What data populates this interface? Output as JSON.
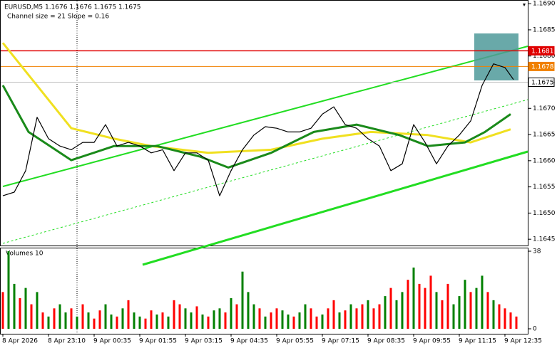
{
  "chart_data": {
    "type": "line",
    "title": "EURUSD,M5  1.1676 1.1676 1.1675 1.1675",
    "subtitle": "Channel size = 21 Slope = 0.16",
    "xlim": [
      0,
      184
    ],
    "xticks": [
      {
        "value": 0,
        "label": "8 Apr 2026"
      },
      {
        "value": 16,
        "label": "8 Apr 23:10"
      },
      {
        "value": 32,
        "label": "9 Apr 00:35"
      },
      {
        "value": 48,
        "label": "9 Apr 01:55"
      },
      {
        "value": 64,
        "label": "9 Apr 03:15"
      },
      {
        "value": 80,
        "label": "9 Apr 04:35"
      },
      {
        "value": 96,
        "label": "9 Apr 05:55"
      },
      {
        "value": 112,
        "label": "9 Apr 07:15"
      },
      {
        "value": 128,
        "label": "9 Apr 08:35"
      },
      {
        "value": 144,
        "label": "9 Apr 09:55"
      },
      {
        "value": 160,
        "label": "9 Apr 11:15"
      },
      {
        "value": 176,
        "label": "9 Apr 12:35"
      }
    ],
    "ylim": [
      1.16438,
      1.16907
    ],
    "yticks": [
      {
        "value": 1.169,
        "label": "1.1690"
      },
      1.1685,
      {
        "value": 1.168,
        "label": "1.1680"
      },
      1.1675,
      {
        "value": 1.167,
        "label": "1.1670"
      },
      1.1665,
      {
        "value": 1.166,
        "label": "1.1660"
      },
      1.1655,
      {
        "value": 1.165,
        "label": "1.1650"
      },
      1.1645
    ],
    "series": [
      {
        "name": "Price",
        "color": "#000000",
        "x": [
          0,
          4,
          8,
          12,
          16,
          20,
          24,
          28,
          32,
          36,
          40,
          44,
          48,
          52,
          56,
          60,
          64,
          68,
          72,
          76,
          80,
          84,
          88,
          92,
          96,
          100,
          104,
          108,
          112,
          116,
          120,
          124,
          128,
          132,
          136,
          140,
          144,
          148,
          152,
          156,
          160,
          164,
          168,
          172,
          176,
          179
        ],
        "values": [
          1.16533,
          1.1654,
          1.16581,
          1.16683,
          1.16642,
          1.16628,
          1.16621,
          1.16635,
          1.16635,
          1.16669,
          1.16628,
          1.16635,
          1.16628,
          1.16615,
          1.16621,
          1.16581,
          1.16615,
          1.16615,
          1.16601,
          1.16533,
          1.16581,
          1.16621,
          1.16649,
          1.16665,
          1.16662,
          1.16655,
          1.16655,
          1.16662,
          1.16689,
          1.16703,
          1.16669,
          1.16662,
          1.16642,
          1.16628,
          1.16581,
          1.16594,
          1.16669,
          1.16635,
          1.16594,
          1.16628,
          1.16649,
          1.16676,
          1.16744,
          1.16785,
          1.16778,
          1.16755
        ]
      },
      {
        "name": "MA fast",
        "color": "#1a8a1a",
        "x": [
          0,
          9,
          24,
          39,
          54,
          69,
          79,
          94,
          109,
          124,
          139,
          149,
          162,
          169,
          178
        ],
        "values": [
          1.16744,
          1.16655,
          1.16601,
          1.16628,
          1.16628,
          1.16608,
          1.16587,
          1.16615,
          1.16655,
          1.16669,
          1.16649,
          1.16628,
          1.16635,
          1.16655,
          1.16689
        ]
      },
      {
        "name": "MA slow",
        "color": "#f0e020",
        "x": [
          0,
          24,
          39,
          52,
          72,
          94,
          112,
          129,
          149,
          164,
          178
        ],
        "values": [
          1.16825,
          1.16662,
          1.16642,
          1.16628,
          1.16615,
          1.16621,
          1.16642,
          1.16655,
          1.16649,
          1.16635,
          1.1666
        ]
      }
    ],
    "levels": [
      {
        "value": 1.1681,
        "color": "#e00000"
      },
      {
        "value": 1.1678,
        "color": "#f08000"
      },
      {
        "value": 1.1675,
        "color": "#c0c0c0"
      }
    ],
    "volumes": {
      "label": "Volumes 10",
      "ylim": [
        0,
        38
      ],
      "yticks": [
        0,
        38
      ],
      "colors": {
        "up": "#008000",
        "down": "#ff0000"
      },
      "x": [
        0,
        2,
        4,
        6,
        8,
        10,
        12,
        14,
        16,
        18,
        20,
        22,
        24,
        26,
        28,
        30,
        32,
        34,
        36,
        38,
        40,
        42,
        44,
        46,
        48,
        50,
        52,
        54,
        56,
        58,
        60,
        62,
        64,
        66,
        68,
        70,
        72,
        74,
        76,
        78,
        80,
        82,
        84,
        86,
        88,
        90,
        92,
        94,
        96,
        98,
        100,
        102,
        104,
        106,
        108,
        110,
        112,
        114,
        116,
        118,
        120,
        122,
        124,
        126,
        128,
        130,
        132,
        134,
        136,
        138,
        140,
        142,
        144,
        146,
        148,
        150,
        152,
        154,
        156,
        158,
        160,
        162,
        164,
        166,
        168,
        170,
        172,
        174,
        176,
        178,
        180
      ],
      "values": [
        18,
        38,
        22,
        15,
        20,
        12,
        18,
        8,
        6,
        10,
        12,
        8,
        10,
        6,
        12,
        8,
        5,
        9,
        12,
        7,
        6,
        10,
        14,
        8,
        6,
        5,
        9,
        7,
        8,
        6,
        14,
        12,
        10,
        8,
        11,
        7,
        6,
        9,
        10,
        8,
        15,
        12,
        28,
        18,
        12,
        10,
        6,
        8,
        10,
        9,
        7,
        6,
        8,
        12,
        10,
        6,
        7,
        10,
        14,
        8,
        9,
        12,
        10,
        12,
        14,
        10,
        12,
        16,
        20,
        14,
        18,
        24,
        30,
        22,
        20,
        26,
        18,
        14,
        22,
        12,
        16,
        24,
        18,
        20,
        26,
        18,
        14,
        12,
        10,
        8,
        6
      ],
      "up": [
        0,
        1,
        1,
        0,
        1,
        0,
        1,
        0,
        1,
        0,
        1,
        1,
        0,
        1,
        0,
        1,
        0,
        0,
        1,
        1,
        0,
        1,
        0,
        1,
        1,
        0,
        0,
        1,
        0,
        1,
        0,
        0,
        1,
        1,
        0,
        1,
        0,
        1,
        1,
        0,
        1,
        0,
        1,
        1,
        1,
        0,
        1,
        0,
        0,
        1,
        1,
        0,
        1,
        1,
        0,
        0,
        1,
        0,
        0,
        1,
        0,
        1,
        0,
        0,
        1,
        0,
        0,
        1,
        0,
        1,
        1,
        0,
        1,
        0,
        0,
        0,
        1,
        0,
        0,
        1,
        1,
        1,
        0,
        1,
        1,
        0,
        1,
        0,
        0,
        0,
        0
      ]
    }
  }
}
